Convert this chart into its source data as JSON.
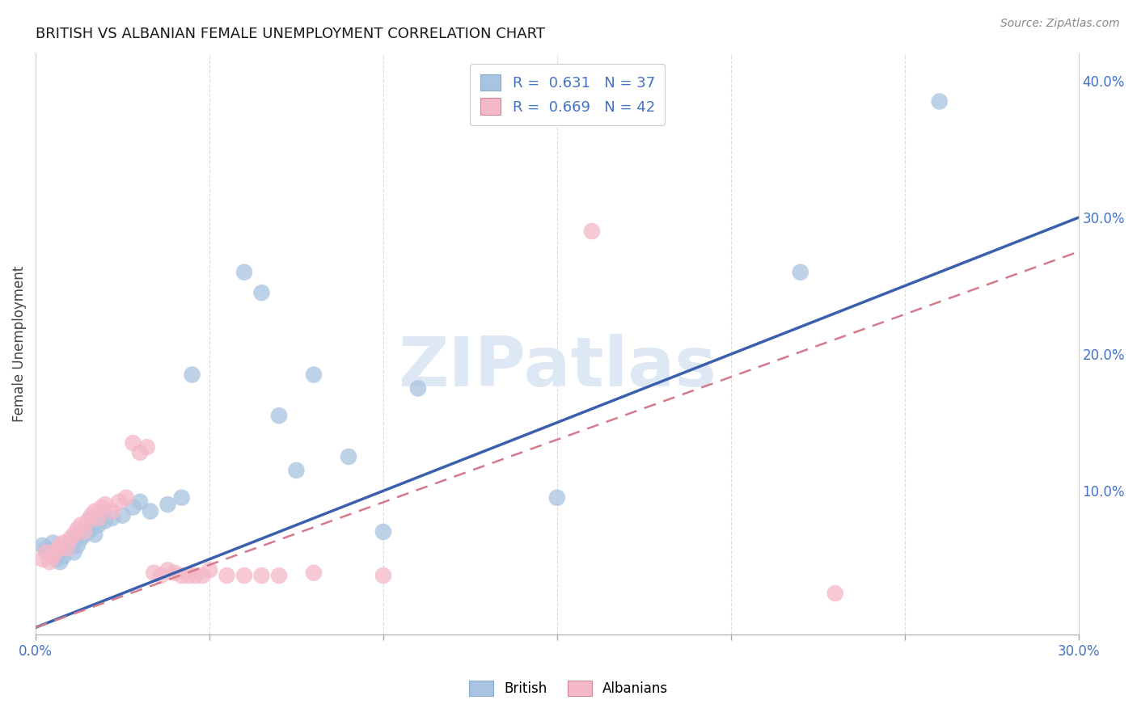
{
  "title": "BRITISH VS ALBANIAN FEMALE UNEMPLOYMENT CORRELATION CHART",
  "source": "Source: ZipAtlas.com",
  "ylabel": "Female Unemployment",
  "xlim": [
    0.0,
    0.3
  ],
  "ylim": [
    -0.005,
    0.42
  ],
  "xticks": [
    0.0,
    0.05,
    0.1,
    0.15,
    0.2,
    0.25,
    0.3
  ],
  "xtick_labels_show": [
    "0.0%",
    "",
    "",
    "",
    "",
    "",
    "30.0%"
  ],
  "yticks_right": [
    0.1,
    0.2,
    0.3,
    0.4
  ],
  "ytick_labels_right": [
    "10.0%",
    "20.0%",
    "30.0%",
    "40.0%"
  ],
  "legend_r_british": "R =  0.631",
  "legend_n_british": "N = 37",
  "legend_r_albanian": "R =  0.669",
  "legend_n_albanian": "N = 42",
  "watermark_text": "ZIPatlas",
  "british_color": "#a8c4e0",
  "albanian_color": "#f4b8c8",
  "british_line_color": "#3a5fad",
  "albanian_line_color": "#d47a8a",
  "legend_text_color": "#4472c4",
  "axis_tick_color": "#4472c4",
  "british_scatter": [
    [
      0.002,
      0.06
    ],
    [
      0.003,
      0.058
    ],
    [
      0.004,
      0.055
    ],
    [
      0.005,
      0.062
    ],
    [
      0.006,
      0.05
    ],
    [
      0.007,
      0.048
    ],
    [
      0.008,
      0.052
    ],
    [
      0.009,
      0.058
    ],
    [
      0.01,
      0.062
    ],
    [
      0.011,
      0.055
    ],
    [
      0.012,
      0.06
    ],
    [
      0.013,
      0.065
    ],
    [
      0.014,
      0.068
    ],
    [
      0.015,
      0.07
    ],
    [
      0.016,
      0.072
    ],
    [
      0.017,
      0.068
    ],
    [
      0.018,
      0.075
    ],
    [
      0.02,
      0.078
    ],
    [
      0.022,
      0.08
    ],
    [
      0.025,
      0.082
    ],
    [
      0.028,
      0.088
    ],
    [
      0.03,
      0.092
    ],
    [
      0.033,
      0.085
    ],
    [
      0.038,
      0.09
    ],
    [
      0.042,
      0.095
    ],
    [
      0.045,
      0.185
    ],
    [
      0.06,
      0.26
    ],
    [
      0.065,
      0.245
    ],
    [
      0.07,
      0.155
    ],
    [
      0.075,
      0.115
    ],
    [
      0.08,
      0.185
    ],
    [
      0.09,
      0.125
    ],
    [
      0.1,
      0.07
    ],
    [
      0.11,
      0.175
    ],
    [
      0.15,
      0.095
    ],
    [
      0.22,
      0.26
    ],
    [
      0.26,
      0.385
    ]
  ],
  "albanian_scatter": [
    [
      0.002,
      0.05
    ],
    [
      0.003,
      0.055
    ],
    [
      0.004,
      0.048
    ],
    [
      0.005,
      0.052
    ],
    [
      0.006,
      0.056
    ],
    [
      0.007,
      0.06
    ],
    [
      0.008,
      0.062
    ],
    [
      0.009,
      0.058
    ],
    [
      0.01,
      0.065
    ],
    [
      0.011,
      0.068
    ],
    [
      0.012,
      0.072
    ],
    [
      0.013,
      0.075
    ],
    [
      0.014,
      0.07
    ],
    [
      0.015,
      0.078
    ],
    [
      0.016,
      0.082
    ],
    [
      0.017,
      0.085
    ],
    [
      0.018,
      0.08
    ],
    [
      0.019,
      0.088
    ],
    [
      0.02,
      0.09
    ],
    [
      0.022,
      0.085
    ],
    [
      0.024,
      0.092
    ],
    [
      0.026,
      0.095
    ],
    [
      0.028,
      0.135
    ],
    [
      0.03,
      0.128
    ],
    [
      0.032,
      0.132
    ],
    [
      0.034,
      0.04
    ],
    [
      0.036,
      0.038
    ],
    [
      0.038,
      0.042
    ],
    [
      0.04,
      0.04
    ],
    [
      0.042,
      0.038
    ],
    [
      0.044,
      0.038
    ],
    [
      0.046,
      0.038
    ],
    [
      0.048,
      0.038
    ],
    [
      0.05,
      0.042
    ],
    [
      0.055,
      0.038
    ],
    [
      0.06,
      0.038
    ],
    [
      0.065,
      0.038
    ],
    [
      0.07,
      0.038
    ],
    [
      0.08,
      0.04
    ],
    [
      0.1,
      0.038
    ],
    [
      0.16,
      0.29
    ],
    [
      0.23,
      0.025
    ]
  ]
}
